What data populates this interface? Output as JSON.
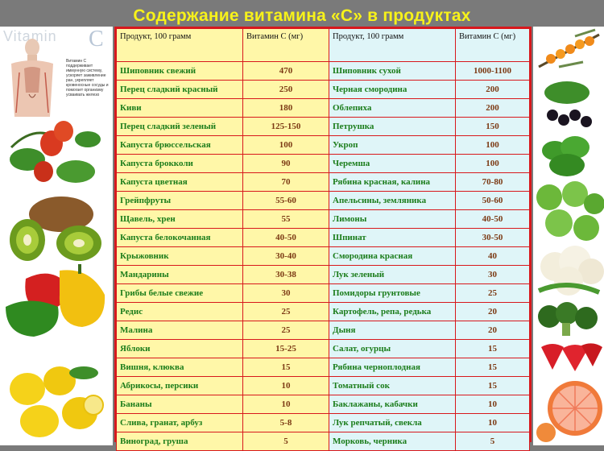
{
  "title": "Содержание витамина «С» в продуктах",
  "illustration": {
    "word": "Vitamin",
    "letter": "C",
    "description": "Витамин С поддерживает иммунную систему, ускоряет заживление ран, укрепляет кровеносные сосуды и помогает организму усваивать железо"
  },
  "table": {
    "headers": [
      "Продукт,  100 грамм",
      "Витамин С (мг)",
      "Продукт,  100 грамм",
      "Витамин С (мг)"
    ],
    "rows": [
      [
        "Шиповник  свежий",
        "470",
        "Шиповник  сухой",
        "1000-1100"
      ],
      [
        "Перец  сладкий  красный",
        "250",
        "Черная  смородина",
        "200"
      ],
      [
        "Киви",
        "180",
        "Облепиха",
        "200"
      ],
      [
        "Перец  сладкий  зеленый",
        "125-150",
        "Петрушка",
        "150"
      ],
      [
        "Капуста  брюссельская",
        "100",
        "Укроп",
        "100"
      ],
      [
        "Капуста  брокколи",
        "90",
        "Черемша",
        "100"
      ],
      [
        "Капуста  цветная",
        "70",
        "Рябина  красная,  калина",
        "70-80"
      ],
      [
        "Грейпфруты",
        "55-60",
        "Апельсины,  земляника",
        "50-60"
      ],
      [
        "Щавель,  хрен",
        "55",
        "Лимоны",
        "40-50"
      ],
      [
        "Капуста  белокочанная",
        "40-50",
        "Шпинат",
        "30-50"
      ],
      [
        "Крыжовник",
        "30-40",
        "Смородина  красная",
        "40"
      ],
      [
        "Мандарины",
        "30-38",
        "Лук  зеленый",
        "30"
      ],
      [
        "Грибы  белые  свежие",
        "30",
        "Помидоры  грунтовые",
        "25"
      ],
      [
        "Редис",
        "25",
        "Картофель,  репа,  редька",
        "20"
      ],
      [
        "Малина",
        "25",
        "Дыня",
        "20"
      ],
      [
        "Яблоки",
        "15-25",
        "Салат,  огурцы",
        "15"
      ],
      [
        "Вишня,  клюква",
        "15",
        "Рябина  черноплодная",
        "15"
      ],
      [
        "Абрикосы,  персики",
        "10",
        "Томатный  сок",
        "15"
      ],
      [
        "Бананы",
        "10",
        "Баклажаны,  кабачки",
        "10"
      ],
      [
        "Слива,  гранат,  арбуз",
        "5-8",
        "Лук  репчатый,  свекла",
        "10"
      ],
      [
        "Виноград,  груша",
        "5",
        "Морковь,  черника",
        "5"
      ]
    ]
  },
  "colors": {
    "title": "#f7f21a",
    "border": "#d8181c",
    "left_cells": "#fff7a8",
    "right_cells": "#dff5f8",
    "product_text": "#1b7d1b",
    "value_text": "#7c3a14"
  }
}
